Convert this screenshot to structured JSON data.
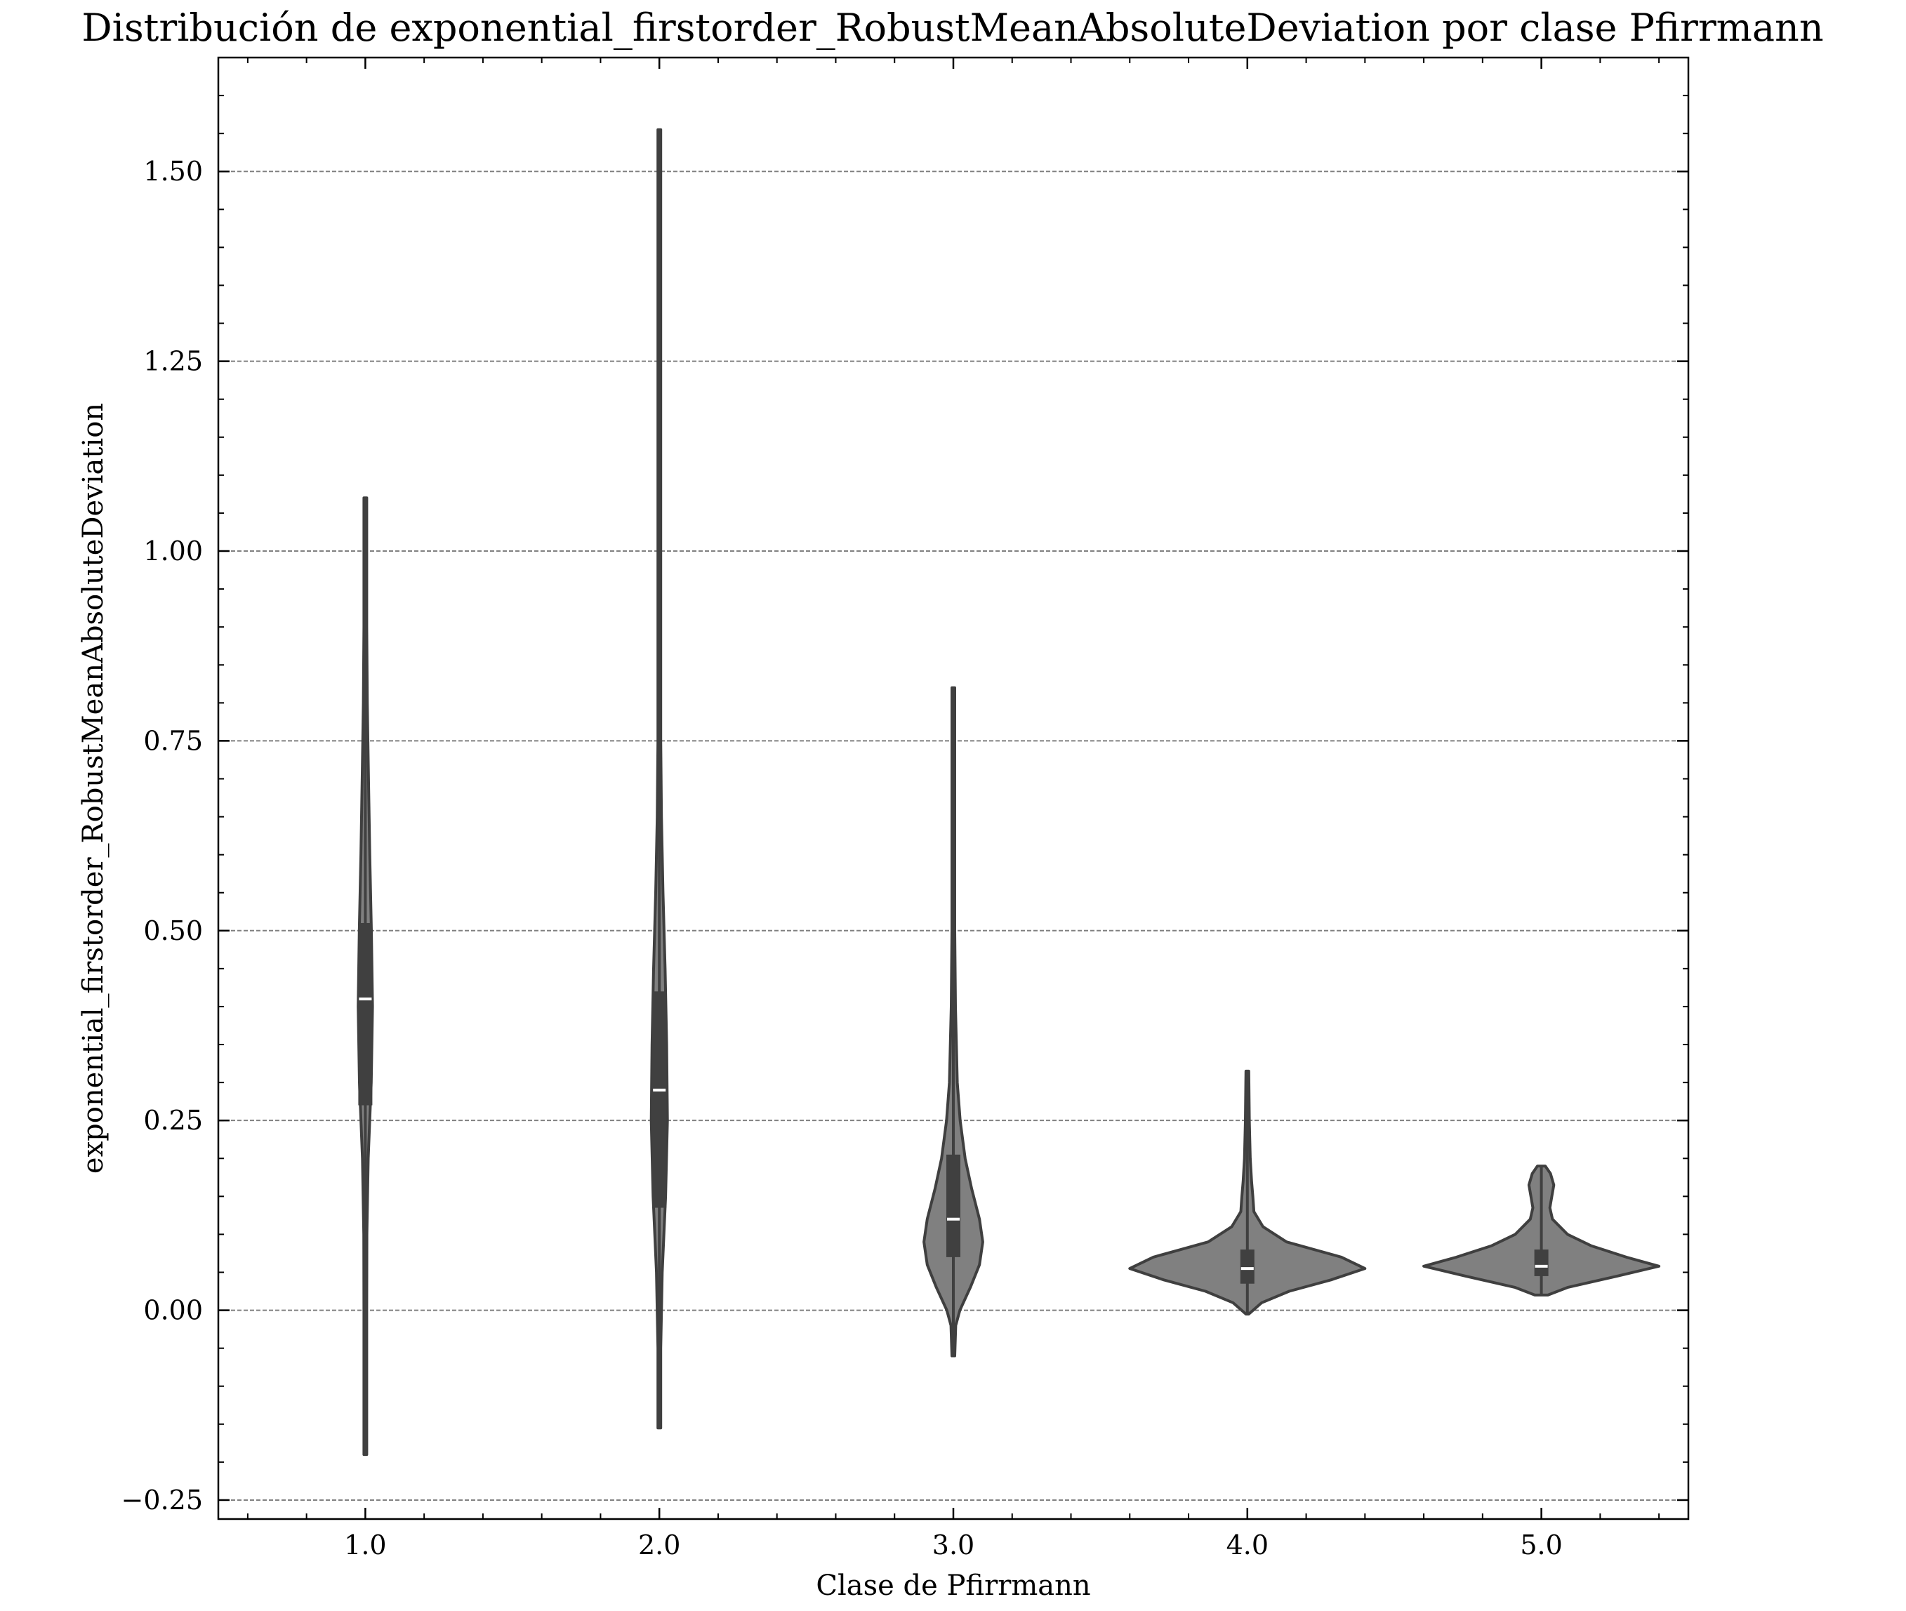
{
  "chart_data": {
    "type": "violin",
    "title": "Distribución de exponential_firstorder_RobustMeanAbsoluteDeviation por clase Pfirrmann",
    "xlabel": "Clase de Pfirrmann",
    "ylabel": "exponential_firstorder_RobustMeanAbsoluteDeviation",
    "categories": [
      "1.0",
      "2.0",
      "3.0",
      "4.0",
      "5.0"
    ],
    "ylim": [
      -0.275,
      1.65
    ],
    "yticks": [
      -0.25,
      0.0,
      0.25,
      0.5,
      0.75,
      1.0,
      1.25,
      1.5
    ],
    "ytick_labels": [
      "−0.25",
      "0.00",
      "0.25",
      "0.50",
      "0.75",
      "1.00",
      "1.25",
      "1.50"
    ],
    "grid": "horizontal dashed",
    "colors": {
      "violin_fill": "#808080",
      "violin_edge": "#3f3f3f",
      "box": "#404040",
      "median": "#ffffff",
      "grid": "#808080"
    },
    "series": [
      {
        "category": "1.0",
        "min": -0.19,
        "q1": 0.27,
        "median": 0.41,
        "q3": 0.51,
        "max": 1.07,
        "profile": [
          [
            -0.19,
            0.004
          ],
          [
            0.0,
            0.008
          ],
          [
            0.1,
            0.012
          ],
          [
            0.2,
            0.022
          ],
          [
            0.3,
            0.045
          ],
          [
            0.4,
            0.055
          ],
          [
            0.5,
            0.046
          ],
          [
            0.6,
            0.034
          ],
          [
            0.7,
            0.024
          ],
          [
            0.8,
            0.015
          ],
          [
            0.9,
            0.009
          ],
          [
            1.0,
            0.006
          ],
          [
            1.07,
            0.003
          ]
        ]
      },
      {
        "category": "2.0",
        "min": -0.155,
        "q1": 0.135,
        "median": 0.29,
        "q3": 0.42,
        "max": 1.555,
        "profile": [
          [
            -0.155,
            0.004
          ],
          [
            -0.05,
            0.006
          ],
          [
            0.05,
            0.022
          ],
          [
            0.15,
            0.048
          ],
          [
            0.25,
            0.062
          ],
          [
            0.35,
            0.056
          ],
          [
            0.45,
            0.044
          ],
          [
            0.55,
            0.028
          ],
          [
            0.65,
            0.016
          ],
          [
            0.75,
            0.009
          ],
          [
            0.9,
            0.005
          ],
          [
            1.1,
            0.004
          ],
          [
            1.3,
            0.004
          ],
          [
            1.555,
            0.004
          ]
        ]
      },
      {
        "category": "3.0",
        "min": -0.06,
        "q1": 0.07,
        "median": 0.12,
        "q3": 0.205,
        "max": 0.82,
        "profile": [
          [
            -0.06,
            0.005
          ],
          [
            -0.02,
            0.018
          ],
          [
            0.0,
            0.05
          ],
          [
            0.03,
            0.13
          ],
          [
            0.06,
            0.2
          ],
          [
            0.09,
            0.225
          ],
          [
            0.12,
            0.2
          ],
          [
            0.16,
            0.14
          ],
          [
            0.2,
            0.09
          ],
          [
            0.25,
            0.052
          ],
          [
            0.3,
            0.03
          ],
          [
            0.4,
            0.016
          ],
          [
            0.5,
            0.01
          ],
          [
            0.6,
            0.007
          ],
          [
            0.82,
            0.005
          ]
        ]
      },
      {
        "category": "4.0",
        "min": -0.005,
        "q1": 0.035,
        "median": 0.055,
        "q3": 0.08,
        "max": 0.315,
        "profile": [
          [
            -0.005,
            0.01
          ],
          [
            0.01,
            0.11
          ],
          [
            0.025,
            0.32
          ],
          [
            0.04,
            0.64
          ],
          [
            0.055,
            0.9
          ],
          [
            0.07,
            0.72
          ],
          [
            0.09,
            0.3
          ],
          [
            0.11,
            0.12
          ],
          [
            0.13,
            0.05
          ],
          [
            0.15,
            0.042
          ],
          [
            0.17,
            0.032
          ],
          [
            0.2,
            0.022
          ],
          [
            0.25,
            0.015
          ],
          [
            0.3,
            0.012
          ],
          [
            0.315,
            0.008
          ]
        ]
      },
      {
        "category": "5.0",
        "min": 0.02,
        "q1": 0.045,
        "median": 0.058,
        "q3": 0.08,
        "max": 0.19,
        "profile": [
          [
            0.02,
            0.05
          ],
          [
            0.03,
            0.2
          ],
          [
            0.045,
            0.58
          ],
          [
            0.058,
            0.9
          ],
          [
            0.07,
            0.65
          ],
          [
            0.085,
            0.38
          ],
          [
            0.1,
            0.2
          ],
          [
            0.12,
            0.085
          ],
          [
            0.135,
            0.065
          ],
          [
            0.15,
            0.08
          ],
          [
            0.165,
            0.095
          ],
          [
            0.18,
            0.07
          ],
          [
            0.19,
            0.03
          ]
        ]
      }
    ]
  }
}
